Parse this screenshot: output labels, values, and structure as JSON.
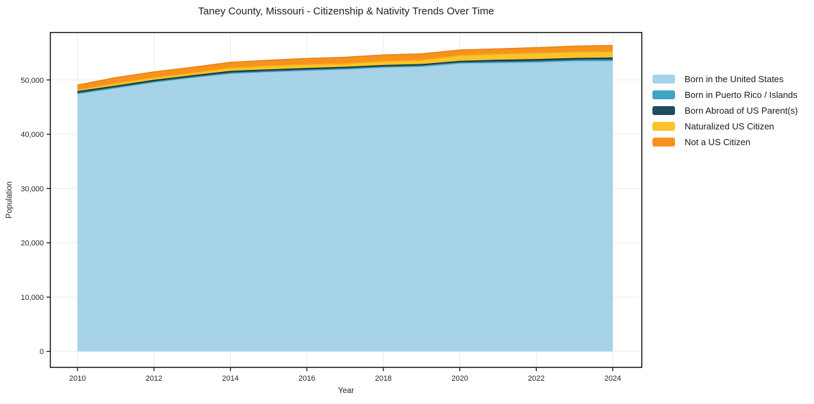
{
  "title": "Taney County, Missouri - Citizenship & Nativity Trends Over Time",
  "colors": {
    "background": "#ffffff",
    "grid": "#e9e9e9",
    "spine": "#000000",
    "text": "#262626"
  },
  "chart_data": {
    "type": "area",
    "stacked": true,
    "title": "Taney County, Missouri - Citizenship & Nativity Trends Over Time",
    "xlabel": "Year",
    "ylabel": "Population",
    "x": [
      2010,
      2011,
      2012,
      2013,
      2014,
      2015,
      2016,
      2017,
      2018,
      2019,
      2020,
      2021,
      2022,
      2023,
      2024
    ],
    "series": [
      {
        "name": "Born in the United States",
        "color": "#a6d3e8",
        "edge_color": "#8fc2dc",
        "values": [
          47450,
          48510,
          49560,
          50400,
          51160,
          51450,
          51700,
          51920,
          52250,
          52420,
          53000,
          53100,
          53200,
          53430,
          53430
        ]
      },
      {
        "name": "Born in Puerto Rico / Islands",
        "color": "#3da6c2",
        "edge_color": "#2b8dab",
        "values": [
          80,
          90,
          100,
          110,
          120,
          130,
          140,
          150,
          160,
          170,
          180,
          200,
          210,
          215,
          290
        ]
      },
      {
        "name": "Born Abroad of US Parent(s)",
        "color": "#214c60",
        "edge_color": "#16323f",
        "values": [
          330,
          280,
          280,
          270,
          300,
          290,
          280,
          270,
          270,
          250,
          250,
          330,
          345,
          325,
          340
        ]
      },
      {
        "name": "Naturalized US Citizen",
        "color": "#fcc32a",
        "edge_color": "#edb114",
        "values": [
          280,
          500,
          500,
          510,
          630,
          710,
          720,
          670,
          760,
          790,
          1080,
          1135,
          1185,
          1175,
          1170
        ]
      },
      {
        "name": "Not a US Citizen",
        "color": "#f7921e",
        "edge_color": "#e67f0d",
        "values": [
          930,
          1050,
          1050,
          1050,
          1040,
          1050,
          1130,
          1180,
          1170,
          1185,
          1010,
          970,
          1010,
          1095,
          1135
        ]
      }
    ],
    "xlim": [
      2009.28,
      2024.77
    ],
    "ylim": [
      -3000,
      58800
    ],
    "xticks": [
      2010,
      2012,
      2014,
      2016,
      2018,
      2020,
      2022,
      2024
    ],
    "yticks": [
      0,
      10000,
      20000,
      30000,
      40000,
      50000
    ],
    "ytick_labels": [
      "0",
      "10,000",
      "20,000",
      "30,000",
      "40,000",
      "50,000"
    ],
    "grid": true,
    "legend_position": "right-outside"
  }
}
